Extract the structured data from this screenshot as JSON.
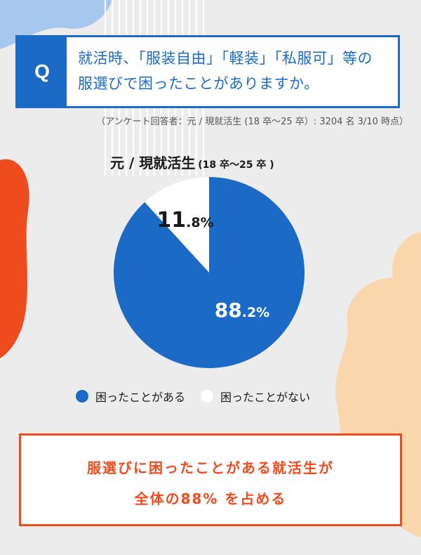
{
  "question": {
    "mark": "Q",
    "line1": "就活時、「服装自由」「軽装」「私服可」等の",
    "line2": "服選びで困ったことがありますか。"
  },
  "survey_note": "（アンケート回答者：元 / 現就活生 (18 卒～25 卒）: 3204 名 3/10 時点）",
  "pie_title": {
    "main": "元 / 現就活生",
    "sub": "(18 卒～25 卒 )"
  },
  "conclusion": {
    "line1": "服選びに困ったことがある就活生が",
    "line2": "全体の88% を占める"
  },
  "colors": {
    "primary_blue": "#1a6ac6",
    "accent_orange": "#ee4b1f",
    "peach": "#f9d6ac",
    "light_blue": "#a6c8ee",
    "background": "#ececec"
  },
  "chart_data": {
    "type": "pie",
    "title": "元 / 現就活生 (18 卒～25 卒 )",
    "slices": [
      {
        "label": "困ったことがある",
        "value": 88.2,
        "display_int": "88",
        "display_dec": ".2%",
        "color": "#1a6ac6"
      },
      {
        "label": "困ったことがない",
        "value": 11.8,
        "display_int": "11",
        "display_dec": ".8%",
        "color": "#ffffff"
      }
    ],
    "legend_position": "bottom"
  }
}
